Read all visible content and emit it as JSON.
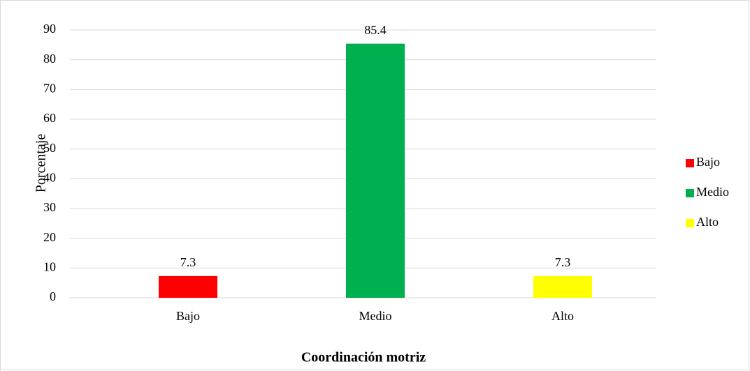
{
  "chart_data": {
    "type": "bar",
    "categories": [
      "Bajo",
      "Medio",
      "Alto"
    ],
    "values": [
      7.3,
      85.4,
      7.3
    ],
    "colors": [
      "#ff0000",
      "#00b050",
      "#ffff00"
    ],
    "xlabel": "Coordinación motriz",
    "ylabel": "Porcentaje",
    "ylim": [
      0,
      90
    ],
    "yticks": [
      0,
      10,
      20,
      30,
      40,
      50,
      60,
      70,
      80,
      90
    ],
    "grid": true,
    "legend": "right"
  }
}
